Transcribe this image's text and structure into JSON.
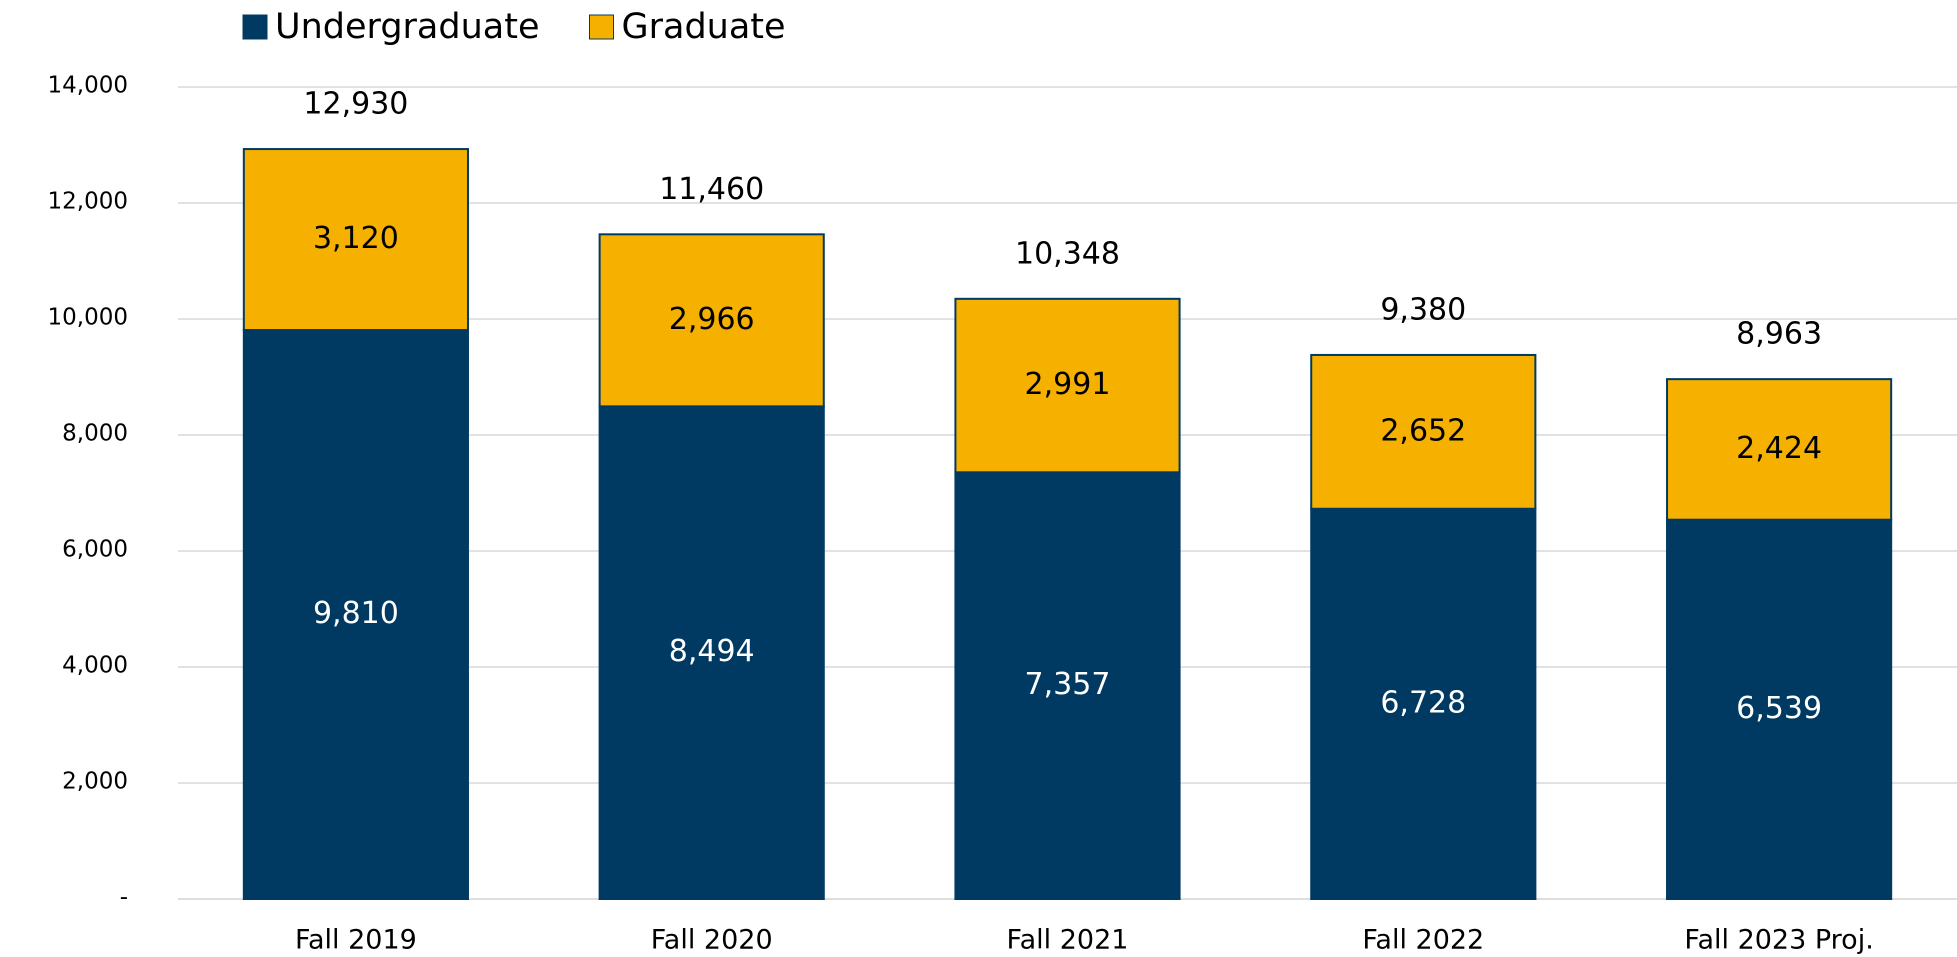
{
  "chart_data": {
    "type": "stacked_bar",
    "categories": [
      "Fall 2019",
      "Fall 2020",
      "Fall 2021",
      "Fall 2022",
      "Fall 2023 Proj."
    ],
    "series": [
      {
        "name": "Undergraduate",
        "color": "#003a63",
        "values": [
          9810,
          8494,
          7357,
          6728,
          6539
        ],
        "value_labels": [
          "9,810",
          "8,494",
          "7,357",
          "6,728",
          "6,539"
        ]
      },
      {
        "name": "Graduate",
        "color": "#f5b000",
        "values": [
          3120,
          2966,
          2991,
          2652,
          2424
        ],
        "value_labels": [
          "3,120",
          "2,966",
          "2,991",
          "2,652",
          "2,424"
        ]
      }
    ],
    "totals": [
      12930,
      11460,
      10348,
      9380,
      8963
    ],
    "totals_labels": [
      "12,930",
      "11,460",
      "10,348",
      "9,380",
      "8,963"
    ],
    "ylim": [
      0,
      14000
    ],
    "yticks": [
      {
        "value": 0,
        "label": "-"
      },
      {
        "value": 2000,
        "label": "2,000"
      },
      {
        "value": 4000,
        "label": "4,000"
      },
      {
        "value": 6000,
        "label": "6,000"
      },
      {
        "value": 8000,
        "label": "8,000"
      },
      {
        "value": 10000,
        "label": "10,000"
      },
      {
        "value": 12000,
        "label": "12,000"
      },
      {
        "value": 14000,
        "label": "14,000"
      }
    ],
    "grid": true,
    "legend": "top-left"
  }
}
